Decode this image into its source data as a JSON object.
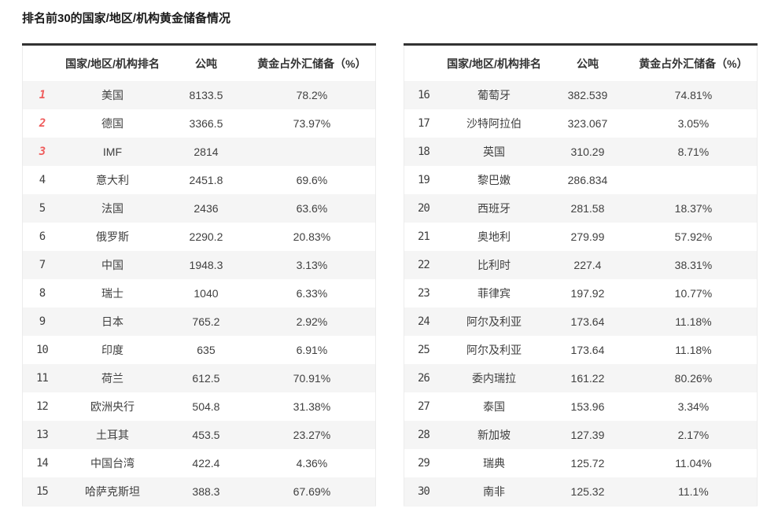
{
  "page": {
    "title": "排名前30的国家/地区/机构黄金储备情况"
  },
  "columns": {
    "rank_header": "",
    "country_header": "国家/地区/机构排名",
    "tonnes_header": "公吨",
    "percent_header": "黄金占外汇储备（%）"
  },
  "colors": {
    "top3_rank_red": "#ef5b5b",
    "rank_gray": "#595959",
    "stripe_gray": "#f5f5f5",
    "top_border_dark": "#333333",
    "text": "#404040"
  },
  "tables": [
    {
      "rows": [
        {
          "rank": "1",
          "country": "美国",
          "tonnes": "8133.5",
          "percent": "78.2%",
          "highlight": true
        },
        {
          "rank": "2",
          "country": "德国",
          "tonnes": "3366.5",
          "percent": "73.97%",
          "highlight": true
        },
        {
          "rank": "3",
          "country": "IMF",
          "tonnes": "2814",
          "percent": "",
          "highlight": true
        },
        {
          "rank": "4",
          "country": "意大利",
          "tonnes": "2451.8",
          "percent": "69.6%",
          "highlight": false
        },
        {
          "rank": "5",
          "country": "法国",
          "tonnes": "2436",
          "percent": "63.6%",
          "highlight": false
        },
        {
          "rank": "6",
          "country": "俄罗斯",
          "tonnes": "2290.2",
          "percent": "20.83%",
          "highlight": false
        },
        {
          "rank": "7",
          "country": "中国",
          "tonnes": "1948.3",
          "percent": "3.13%",
          "highlight": false
        },
        {
          "rank": "8",
          "country": "瑞士",
          "tonnes": "1040",
          "percent": "6.33%",
          "highlight": false
        },
        {
          "rank": "9",
          "country": "日本",
          "tonnes": "765.2",
          "percent": "2.92%",
          "highlight": false
        },
        {
          "rank": "10",
          "country": "印度",
          "tonnes": "635",
          "percent": "6.91%",
          "highlight": false
        },
        {
          "rank": "11",
          "country": "荷兰",
          "tonnes": "612.5",
          "percent": "70.91%",
          "highlight": false
        },
        {
          "rank": "12",
          "country": "欧洲央行",
          "tonnes": "504.8",
          "percent": "31.38%",
          "highlight": false
        },
        {
          "rank": "13",
          "country": "土耳其",
          "tonnes": "453.5",
          "percent": "23.27%",
          "highlight": false
        },
        {
          "rank": "14",
          "country": "中国台湾",
          "tonnes": "422.4",
          "percent": "4.36%",
          "highlight": false
        },
        {
          "rank": "15",
          "country": "哈萨克斯坦",
          "tonnes": "388.3",
          "percent": "67.69%",
          "highlight": false
        }
      ]
    },
    {
      "rows": [
        {
          "rank": "16",
          "country": "葡萄牙",
          "tonnes": "382.539",
          "percent": "74.81%",
          "highlight": false
        },
        {
          "rank": "17",
          "country": "沙特阿拉伯",
          "tonnes": "323.067",
          "percent": "3.05%",
          "highlight": false
        },
        {
          "rank": "18",
          "country": "英国",
          "tonnes": "310.29",
          "percent": "8.71%",
          "highlight": false
        },
        {
          "rank": "19",
          "country": "黎巴嫩",
          "tonnes": "286.834",
          "percent": "",
          "highlight": false
        },
        {
          "rank": "20",
          "country": "西班牙",
          "tonnes": "281.58",
          "percent": "18.37%",
          "highlight": false
        },
        {
          "rank": "21",
          "country": "奥地利",
          "tonnes": "279.99",
          "percent": "57.92%",
          "highlight": false
        },
        {
          "rank": "22",
          "country": "比利时",
          "tonnes": "227.4",
          "percent": "38.31%",
          "highlight": false
        },
        {
          "rank": "23",
          "country": "菲律宾",
          "tonnes": "197.92",
          "percent": "10.77%",
          "highlight": false
        },
        {
          "rank": "24",
          "country": "阿尔及利亚",
          "tonnes": "173.64",
          "percent": "11.18%",
          "highlight": false
        },
        {
          "rank": "25",
          "country": "阿尔及利亚",
          "tonnes": "173.64",
          "percent": "11.18%",
          "highlight": false
        },
        {
          "rank": "26",
          "country": "委内瑞拉",
          "tonnes": "161.22",
          "percent": "80.26%",
          "highlight": false
        },
        {
          "rank": "27",
          "country": "泰国",
          "tonnes": "153.96",
          "percent": "3.34%",
          "highlight": false
        },
        {
          "rank": "28",
          "country": "新加坡",
          "tonnes": "127.39",
          "percent": "2.17%",
          "highlight": false
        },
        {
          "rank": "29",
          "country": "瑞典",
          "tonnes": "125.72",
          "percent": "11.04%",
          "highlight": false
        },
        {
          "rank": "30",
          "country": "南非",
          "tonnes": "125.32",
          "percent": "11.1%",
          "highlight": false
        }
      ]
    }
  ]
}
